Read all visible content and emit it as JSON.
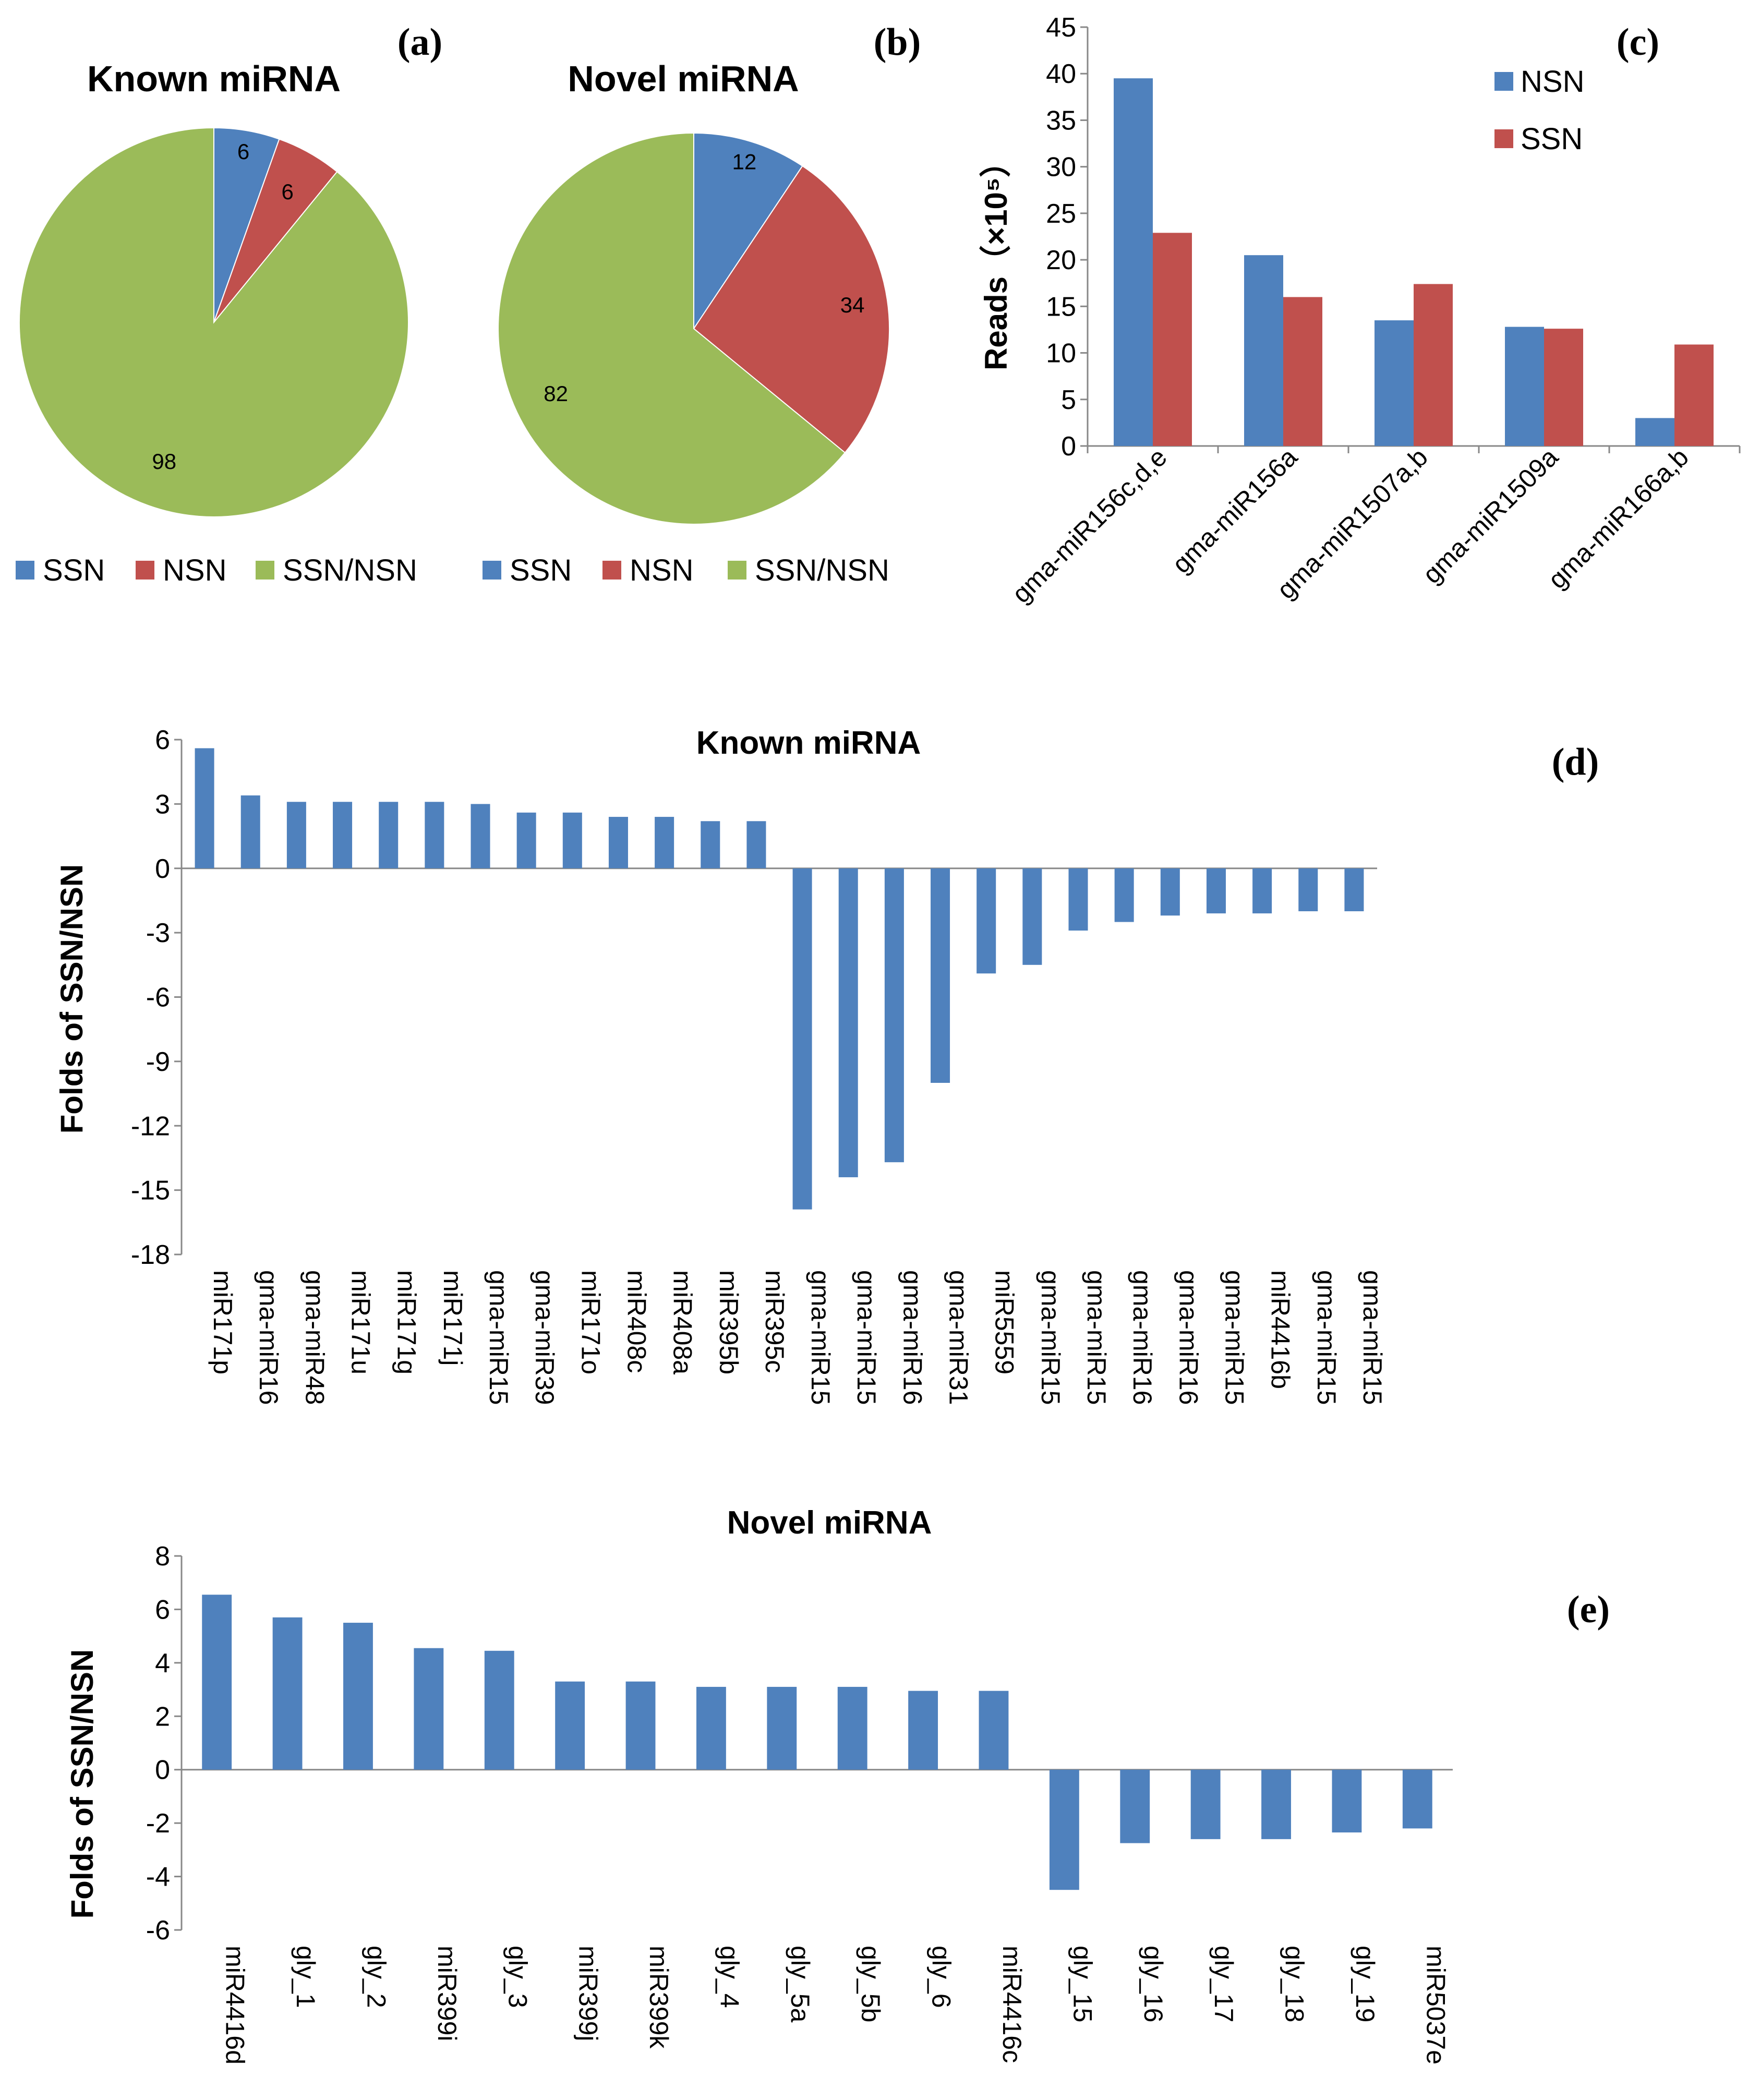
{
  "colors": {
    "blue": "#4f81bd",
    "red": "#c0504d",
    "green": "#9bbb59"
  },
  "chart_data": [
    {
      "id": "a",
      "type": "pie",
      "panel_label": "(a)",
      "title": "Known miRNA",
      "categories": [
        "SSN",
        "NSN",
        "SSN/NSN"
      ],
      "values": [
        6,
        6,
        98
      ],
      "legend_labels": [
        "SSN",
        "NSN",
        "SSN/NSN"
      ],
      "legend": "bottom"
    },
    {
      "id": "b",
      "type": "pie",
      "panel_label": "(b)",
      "title": "Novel miRNA",
      "categories": [
        "SSN",
        "NSN",
        "SSN/NSN"
      ],
      "values": [
        12,
        34,
        82
      ],
      "legend_labels": [
        "SSN",
        "NSN",
        "SSN/NSN"
      ],
      "legend": "bottom"
    },
    {
      "id": "c",
      "type": "bar",
      "panel_label": "(c)",
      "title": "",
      "ylabel": "Reads（×10⁵）",
      "ylim": [
        0,
        45
      ],
      "yticks": [
        "0",
        "5",
        "10",
        "15",
        "20",
        "25",
        "30",
        "35",
        "40",
        "45"
      ],
      "categories": [
        "gma-miR156c,d,e",
        "gma-miR156a",
        "gma-miR1507a,b",
        "gma-miR1509a",
        "gma-miR166a,b"
      ],
      "series": [
        {
          "name": "NSN",
          "values": [
            39.5,
            20.5,
            13.5,
            12.8,
            3.0
          ]
        },
        {
          "name": "SSN",
          "values": [
            22.9,
            16.0,
            17.4,
            12.6,
            10.9
          ]
        }
      ],
      "legend": "top-right"
    },
    {
      "id": "d",
      "type": "bar",
      "panel_label": "(d)",
      "title": "Known miRNA",
      "ylabel": "Folds of SSN/NSN",
      "ylim": [
        -18,
        6
      ],
      "yticks": [
        "6",
        "3",
        "0",
        "-3",
        "-6",
        "-9",
        "-12",
        "-15",
        "-18"
      ],
      "categories": [
        "miR171p",
        "gma-miR16",
        "gma-miR48",
        "miR171u",
        "miR171g",
        "miR171j",
        "gma-miR15",
        "gma-miR39",
        "miR171o",
        "miR408c",
        "miR408a",
        "miR395b",
        "miR395c",
        "gma-miR15",
        "gma-miR15",
        "gma-miR16",
        "gma-miR31",
        "miR5559",
        "gma-miR15",
        "gma-miR15",
        "gma-miR16",
        "gma-miR16",
        "gma-miR15",
        "miR4416b",
        "gma-miR15",
        "gma-miR15"
      ],
      "values": [
        5.6,
        3.4,
        3.1,
        3.1,
        3.1,
        3.1,
        3.0,
        2.6,
        2.6,
        2.4,
        2.4,
        2.2,
        2.2,
        -15.9,
        -14.4,
        -13.7,
        -10.0,
        -4.9,
        -4.5,
        -2.9,
        -2.5,
        -2.2,
        -2.1,
        -2.1,
        -2.0,
        -2.0
      ]
    },
    {
      "id": "e",
      "type": "bar",
      "panel_label": "(e)",
      "title": "Novel miRNA",
      "ylabel": "Folds of SSN/NSN",
      "ylim": [
        -6,
        8
      ],
      "yticks": [
        "8",
        "6",
        "4",
        "2",
        "0",
        "-2",
        "-4",
        "-6"
      ],
      "categories": [
        "miR4416d",
        "gly_1",
        "gly_2",
        "miR399i",
        "gly_3",
        "miR399j",
        "miR399k",
        "gly_4",
        "gly_5a",
        "gly_5b",
        "gly_6",
        "miR4416c",
        "gly_15",
        "gly_16",
        "gly_17",
        "gly_18",
        "gly_19",
        "miR5037e"
      ],
      "values": [
        6.55,
        5.7,
        5.5,
        4.55,
        4.45,
        3.3,
        3.3,
        3.1,
        3.1,
        3.1,
        2.95,
        2.95,
        -4.5,
        -2.75,
        -2.6,
        -2.6,
        -2.35,
        -2.2
      ]
    }
  ]
}
